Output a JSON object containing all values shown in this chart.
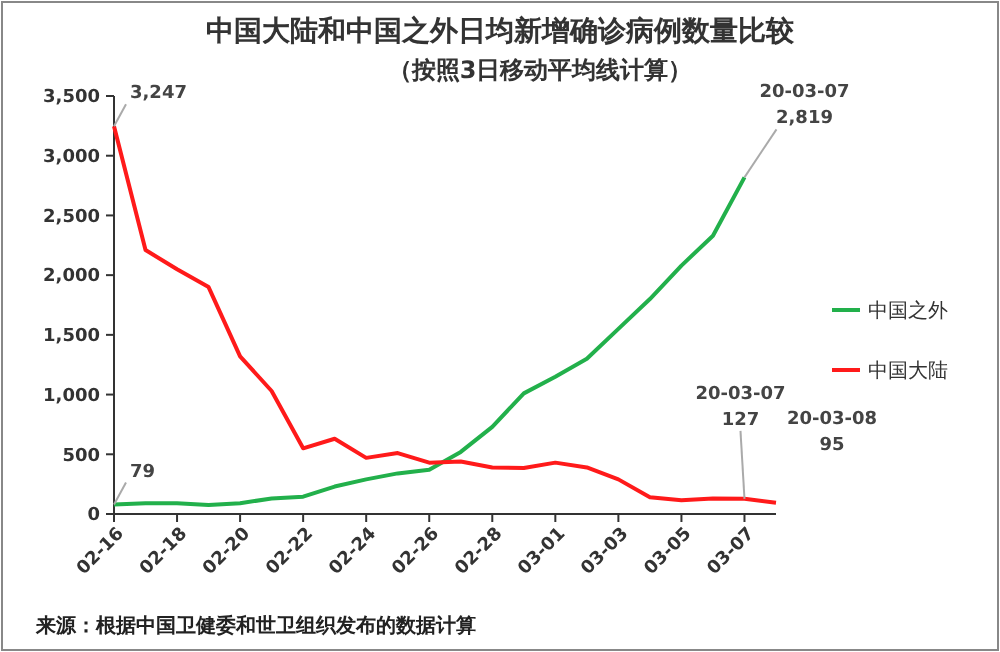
{
  "chart_data": {
    "type": "line",
    "title": "中国大陆和中国之外日均新增确诊病例数量比较",
    "subtitle": "（按照3日移动平均线计算）",
    "categories": [
      "02-16",
      null,
      "02-18",
      null,
      "02-20",
      null,
      "02-22",
      null,
      "02-24",
      null,
      "02-26",
      null,
      "02-28",
      null,
      "03-01",
      null,
      "03-03",
      null,
      "03-05",
      null,
      "03-07",
      null
    ],
    "series": [
      {
        "name": "中国之外",
        "color": "#22b04b",
        "values": [
          79,
          90,
          90,
          75,
          90,
          130,
          145,
          230,
          290,
          340,
          370,
          520,
          730,
          1010,
          1150,
          1300,
          1550,
          1800,
          2080,
          2330,
          2819,
          null
        ]
      },
      {
        "name": "中国大陆",
        "color": "#ff1a1a",
        "values": [
          3247,
          2210,
          2050,
          1900,
          1320,
          1030,
          550,
          630,
          470,
          510,
          430,
          440,
          390,
          385,
          430,
          390,
          290,
          140,
          115,
          130,
          127,
          95
        ]
      }
    ],
    "ylim": [
      0,
      3500
    ],
    "yticks": [
      {
        "value": 0,
        "label": "0"
      },
      {
        "value": 500,
        "label": "500"
      },
      {
        "value": 1000,
        "label": "1,000"
      },
      {
        "value": 1500,
        "label": "1,500"
      },
      {
        "value": 2000,
        "label": "2,000"
      },
      {
        "value": 2500,
        "label": "2,500"
      },
      {
        "value": 3000,
        "label": "3,000"
      },
      {
        "value": 3500,
        "label": "3,500"
      }
    ],
    "grid": false,
    "legend": "right",
    "marker": "none",
    "line_style": "solid",
    "annotations": [
      {
        "text": "3,247",
        "x": "02-16",
        "y": 3247
      },
      {
        "text": "79",
        "x": "02-16",
        "y": 79
      },
      {
        "text": "20-03-07\n2,819",
        "x": "03-07",
        "y": 2819
      },
      {
        "text": "20-03-07\n127",
        "x": "03-07",
        "y": 127
      },
      "20-03-08\n95",
      "来源：根据中国卫健委和世卫组织发布的数据计算"
    ]
  }
}
